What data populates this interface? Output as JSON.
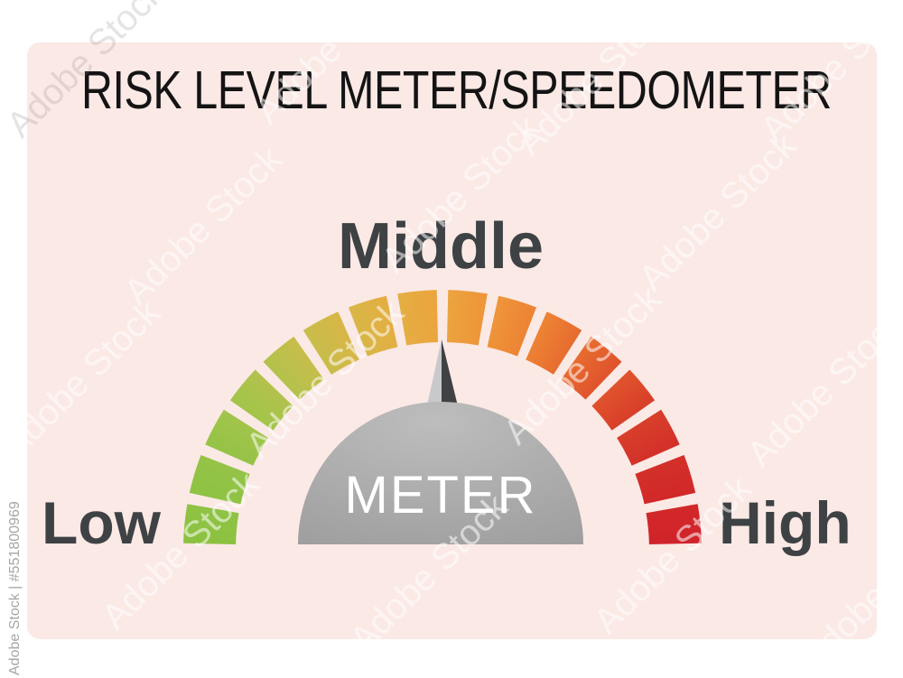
{
  "title": "RISK LEVEL METER/SPEEDOMETER",
  "gauge": {
    "low_label": "Low",
    "middle_label": "Middle",
    "high_label": "High",
    "meter_label": "METER",
    "color_stops": [
      "#8cc140",
      "#8ec344",
      "#95c347",
      "#a2c44a",
      "#b3c24c",
      "#c7bd4b",
      "#d8b647",
      "#e4ae42",
      "#eca43e",
      "#ee953a",
      "#ed8334",
      "#e76c2f",
      "#e0532c",
      "#d83f2a",
      "#d33029",
      "#d22829",
      "#d0232b"
    ]
  },
  "theme": {
    "panel": "#fbe9e5",
    "title": "#141414",
    "label": "#3e4245",
    "meter-text": "#ffffff",
    "needle-light": "#c8c9cb",
    "needle-dark": "#3f4143",
    "dome-light": "#bdbdbd",
    "dome-dark": "#9c9c9c",
    "credit": "#a6a6a6",
    "watermark": "rgba(255,255,255,0.55)"
  },
  "watermark": {
    "tile_label": "Adobe Stock",
    "credit_label": "Adobe Stock | #551800969"
  },
  "chart_data": {
    "type": "gauge",
    "title": "RISK LEVEL METER/SPEEDOMETER",
    "zones": [
      "Low",
      "Middle",
      "High"
    ],
    "zone_positions": {
      "Low": "left (start of arc)",
      "Middle": "top (apex of arc)",
      "High": "right (end of arc)"
    },
    "segments": 16,
    "arc_span_degrees": 180,
    "needle_value": "middle (needle pointing straight up at 90°)",
    "center_label": "METER",
    "color_progression": "green at Low → yellow/gold at Middle → red at High"
  }
}
